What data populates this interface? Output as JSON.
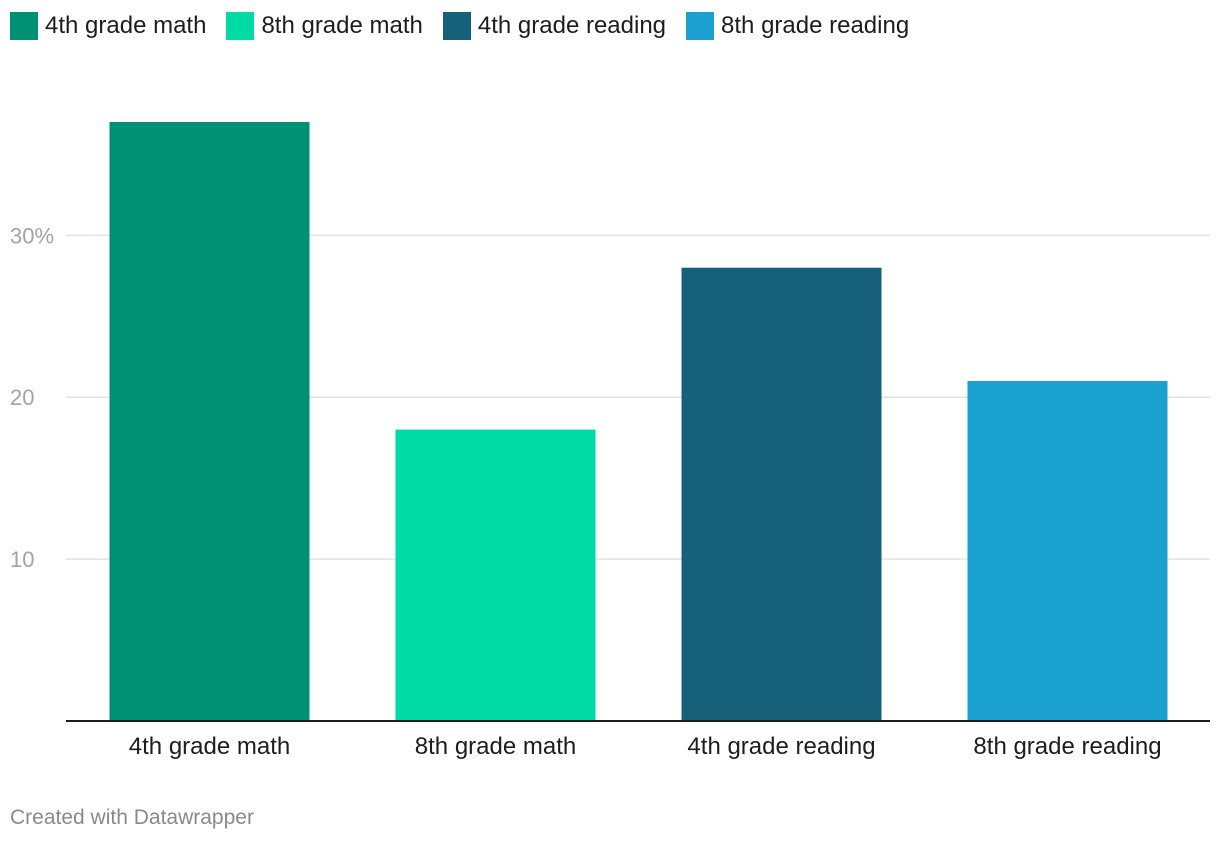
{
  "chart_data": {
    "type": "bar",
    "categories": [
      "4th grade math",
      "8th grade math",
      "4th grade reading",
      "8th grade reading"
    ],
    "values": [
      37,
      18,
      28,
      21
    ],
    "colors": [
      "#009073",
      "#00dba6",
      "#17607a",
      "#1aa1cf"
    ],
    "yticks": [
      {
        "value": 10,
        "label": "10"
      },
      {
        "value": 20,
        "label": "20"
      },
      {
        "value": 30,
        "label": "30%"
      }
    ],
    "ylim": [
      0,
      37
    ],
    "grid": true,
    "legend_position": "top-left"
  },
  "legend": {
    "items": [
      {
        "label": "4th grade math",
        "color": "#009073"
      },
      {
        "label": "8th grade math",
        "color": "#00dba6"
      },
      {
        "label": "4th grade reading",
        "color": "#17607a"
      },
      {
        "label": "8th grade reading",
        "color": "#1aa1cf"
      }
    ]
  },
  "footer": {
    "credit": "Created with Datawrapper"
  }
}
